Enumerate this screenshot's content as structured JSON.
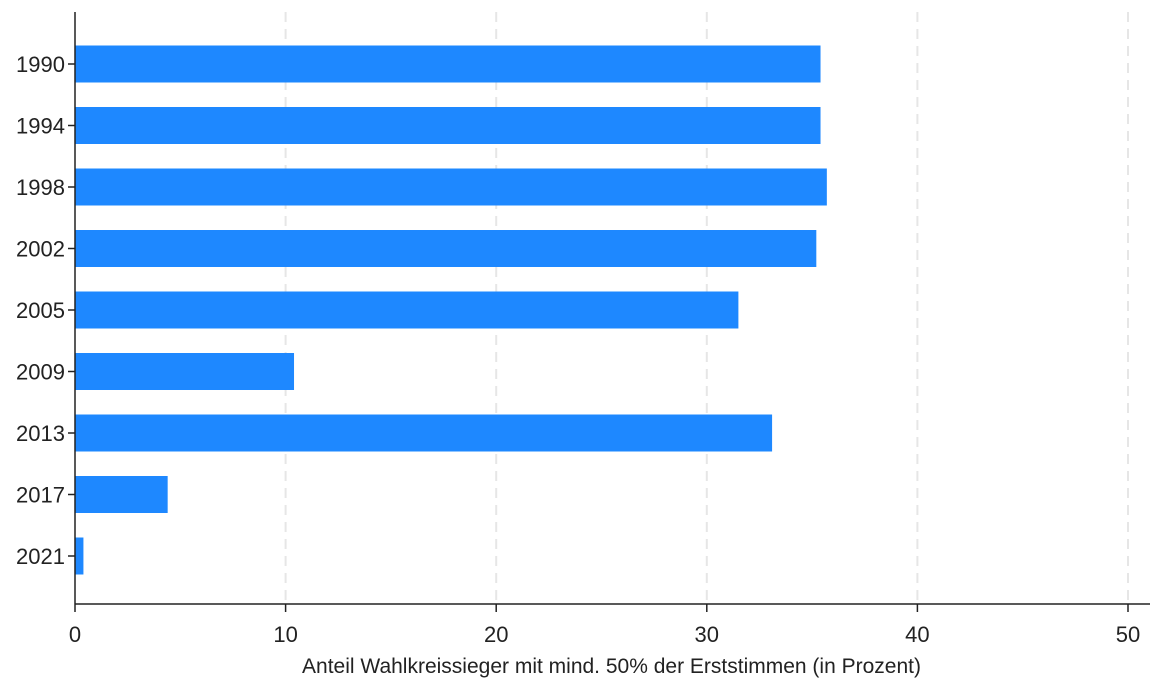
{
  "chart_data": {
    "type": "bar",
    "orientation": "horizontal",
    "categories": [
      "1990",
      "1994",
      "1998",
      "2002",
      "2005",
      "2009",
      "2013",
      "2017",
      "2021"
    ],
    "values": [
      35.4,
      35.4,
      35.7,
      35.2,
      31.5,
      10.4,
      33.1,
      4.4,
      0.4
    ],
    "xlabel": "Anteil Wahlkreissieger mit mind. 50% der Erststimmen (in Prozent)",
    "ylabel": "",
    "xlim": [
      0,
      50
    ],
    "xticks": [
      0,
      10,
      20,
      30,
      40,
      50
    ],
    "grid": "vertical dashed",
    "bar_color": "#1E88FF",
    "grid_color": "#E6E6E6",
    "axis_color": "#222222"
  }
}
